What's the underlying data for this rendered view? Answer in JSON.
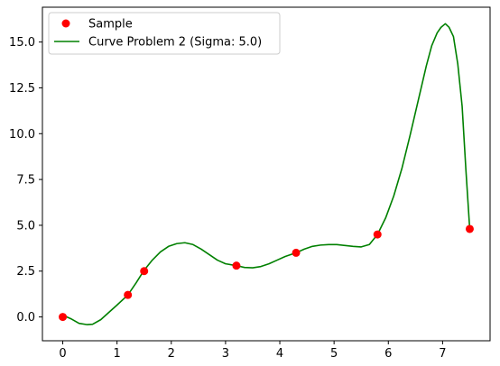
{
  "chart_data": {
    "type": "line",
    "title": "",
    "xlabel": "",
    "ylabel": "",
    "xlim": [
      -0.375,
      7.875
    ],
    "ylim": [
      -1.3,
      16.9
    ],
    "xticks": [
      0,
      1,
      2,
      3,
      4,
      5,
      6,
      7
    ],
    "xtick_labels": [
      "0",
      "1",
      "2",
      "3",
      "4",
      "5",
      "6",
      "7"
    ],
    "yticks": [
      0.0,
      2.5,
      5.0,
      7.5,
      10.0,
      12.5,
      15.0
    ],
    "ytick_labels": [
      "0.0",
      "2.5",
      "5.0",
      "7.5",
      "10.0",
      "12.5",
      "15.0"
    ],
    "grid": false,
    "legend_position": "top-left",
    "series": [
      {
        "name": "Sample",
        "kind": "scatter",
        "color": "#ff0000",
        "x": [
          0.0,
          1.2,
          1.5,
          3.2,
          4.3,
          5.8,
          7.5
        ],
        "y": [
          0.0,
          1.2,
          2.5,
          2.8,
          3.5,
          4.5,
          4.8
        ]
      },
      {
        "name": "Curve Problem 2 (Sigma: 5.0)",
        "kind": "line",
        "color": "#008000",
        "x": [
          0.0,
          0.15,
          0.3,
          0.45,
          0.55,
          0.7,
          0.85,
          1.0,
          1.2,
          1.35,
          1.5,
          1.65,
          1.8,
          1.95,
          2.1,
          2.25,
          2.4,
          2.55,
          2.7,
          2.85,
          3.0,
          3.2,
          3.35,
          3.5,
          3.65,
          3.8,
          3.95,
          4.1,
          4.3,
          4.45,
          4.6,
          4.75,
          4.9,
          5.05,
          5.2,
          5.35,
          5.5,
          5.65,
          5.8,
          5.95,
          6.1,
          6.25,
          6.4,
          6.55,
          6.7,
          6.8,
          6.9,
          6.97,
          7.05,
          7.12,
          7.2,
          7.28,
          7.36,
          7.43,
          7.5
        ],
        "y": [
          0.1,
          -0.1,
          -0.35,
          -0.42,
          -0.4,
          -0.15,
          0.25,
          0.65,
          1.2,
          1.85,
          2.55,
          3.1,
          3.55,
          3.85,
          4.0,
          4.05,
          3.95,
          3.7,
          3.4,
          3.1,
          2.9,
          2.8,
          2.7,
          2.68,
          2.75,
          2.9,
          3.1,
          3.3,
          3.5,
          3.7,
          3.85,
          3.92,
          3.95,
          3.95,
          3.9,
          3.85,
          3.82,
          3.95,
          4.5,
          5.4,
          6.6,
          8.1,
          9.9,
          11.8,
          13.7,
          14.8,
          15.5,
          15.8,
          16.0,
          15.8,
          15.3,
          13.8,
          11.5,
          8.0,
          4.8
        ]
      }
    ]
  }
}
